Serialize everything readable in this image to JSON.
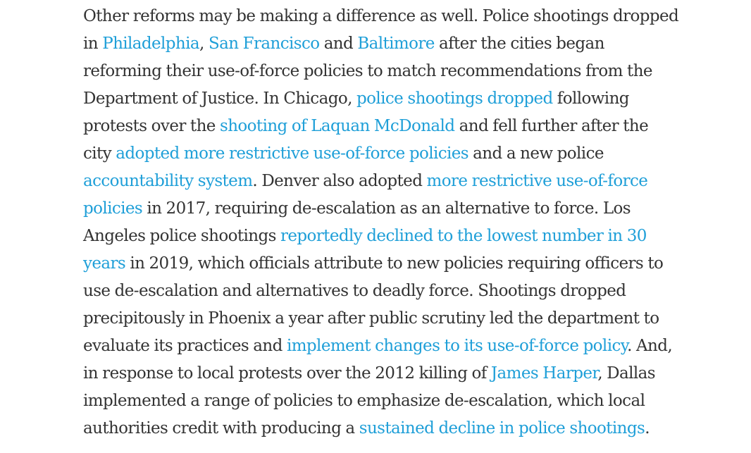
{
  "article": {
    "paragraph": {
      "lines": [
        [
          {
            "text": "Other reforms may be making a difference as well. Police shootings dropped"
          }
        ],
        [
          {
            "text": "in "
          },
          {
            "text": "Philadelphia",
            "link": true
          },
          {
            "text": ", "
          },
          {
            "text": "San Francisco",
            "link": true
          },
          {
            "text": " and "
          },
          {
            "text": "Baltimore",
            "link": true
          },
          {
            "text": " after the cities began"
          }
        ],
        [
          {
            "text": "reforming their use-of-force policies to match recommendations from the"
          }
        ],
        [
          {
            "text": "Department of Justice. In Chicago, "
          },
          {
            "text": "police shootings dropped",
            "link": true
          },
          {
            "text": " following"
          }
        ],
        [
          {
            "text": "protests over the "
          },
          {
            "text": "shooting of Laquan McDonald",
            "link": true
          },
          {
            "text": " and fell further after the"
          }
        ],
        [
          {
            "text": "city "
          },
          {
            "text": "adopted more restrictive use-of-force policies",
            "link": true
          },
          {
            "text": " and a new police"
          }
        ],
        [
          {
            "text": "accountability system",
            "link": true
          },
          {
            "text": ". Denver also adopted "
          },
          {
            "text": "more restrictive use-of-force",
            "link": true
          }
        ],
        [
          {
            "text": "policies",
            "link": true
          },
          {
            "text": " in 2017, requiring de-escalation as an alternative to force. Los"
          }
        ],
        [
          {
            "text": "Angeles police shootings "
          },
          {
            "text": "reportedly declined to the lowest number in 30",
            "link": true
          }
        ],
        [
          {
            "text": "years",
            "link": true
          },
          {
            "text": " in 2019, which officials attribute to new policies requiring officers to"
          }
        ],
        [
          {
            "text": "use de-escalation and alternatives to deadly force. Shootings dropped"
          }
        ],
        [
          {
            "text": "precipitously in Phoenix a year after public scrutiny led the department to"
          }
        ],
        [
          {
            "text": "evaluate its practices and "
          },
          {
            "text": "implement changes to its use-of-force policy",
            "link": true
          },
          {
            "text": ". And,"
          }
        ],
        [
          {
            "text": "in response to local protests over the 2012 killing of "
          },
          {
            "text": "James Harper",
            "link": true
          },
          {
            "text": ", Dallas"
          }
        ],
        [
          {
            "text": "implemented a range of policies to emphasize de-escalation, which local"
          }
        ],
        [
          {
            "text": "authorities credit with producing a "
          },
          {
            "text": "sustained decline in police shootings",
            "link": true
          },
          {
            "text": "."
          }
        ]
      ]
    }
  },
  "colors": {
    "text": "#333333",
    "link": "#1f9fd8",
    "background": "#ffffff"
  }
}
